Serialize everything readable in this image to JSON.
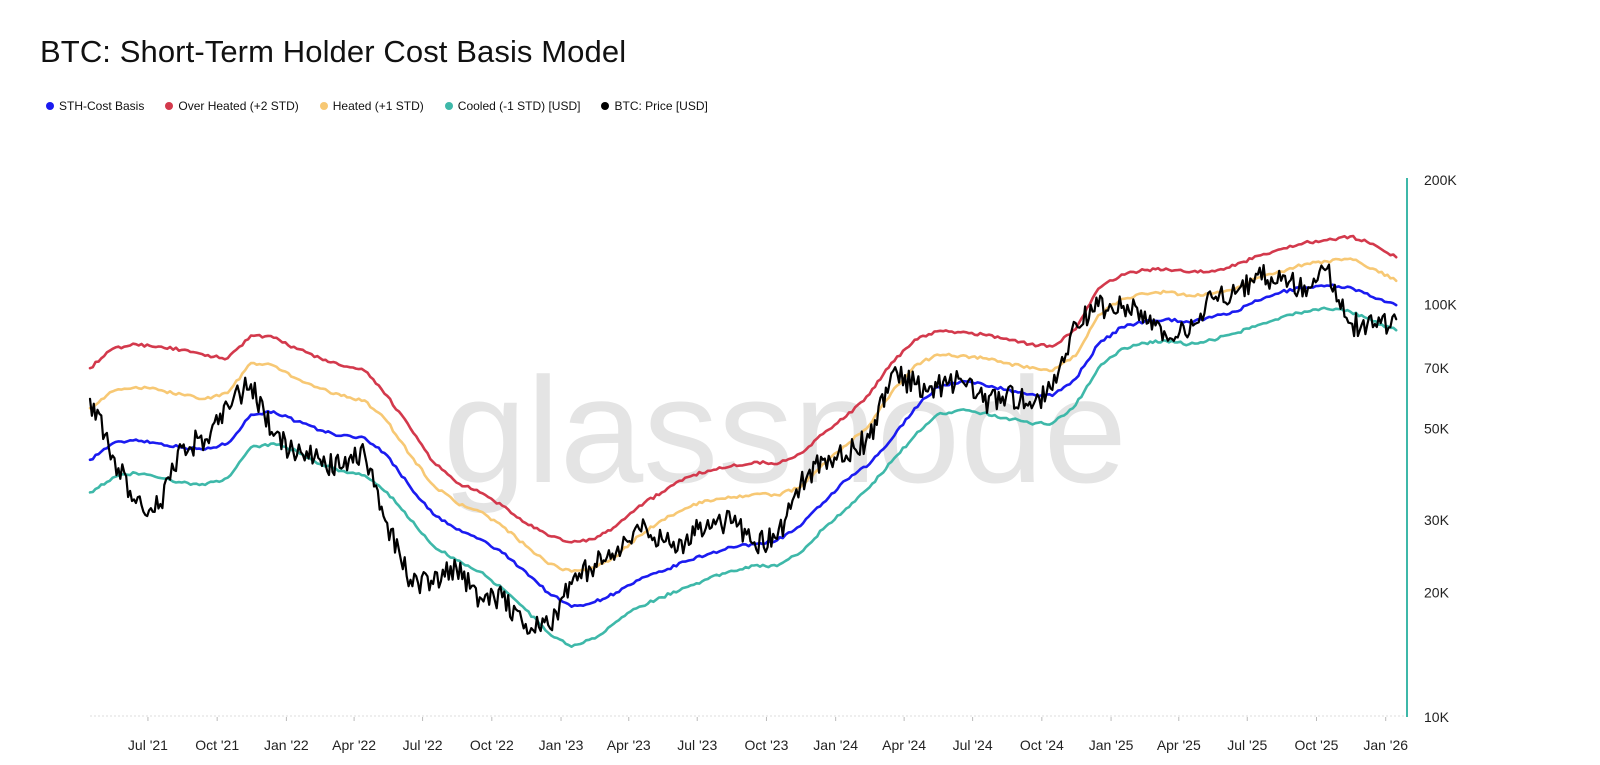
{
  "chart_data": {
    "type": "line",
    "title": "BTC: Short-Term Holder Cost Basis Model",
    "watermark": "glassnode",
    "y_scale": "log",
    "ylim": [
      10000,
      200000
    ],
    "y_ticks": [
      {
        "value": 10000,
        "label": "10K"
      },
      {
        "value": 20000,
        "label": "20K"
      },
      {
        "value": 30000,
        "label": "30K"
      },
      {
        "value": 50000,
        "label": "50K"
      },
      {
        "value": 70000,
        "label": "70K"
      },
      {
        "value": 100000,
        "label": "100K"
      },
      {
        "value": 200000,
        "label": "200K"
      }
    ],
    "xlim": [
      "2021-04-15",
      "2026-01-20"
    ],
    "x_ticks": [
      {
        "date": "2021-07-01",
        "label": "Jul '21"
      },
      {
        "date": "2021-10-01",
        "label": "Oct '21"
      },
      {
        "date": "2022-01-01",
        "label": "Jan '22"
      },
      {
        "date": "2022-04-01",
        "label": "Apr '22"
      },
      {
        "date": "2022-07-01",
        "label": "Jul '22"
      },
      {
        "date": "2022-10-01",
        "label": "Oct '22"
      },
      {
        "date": "2023-01-01",
        "label": "Jan '23"
      },
      {
        "date": "2023-04-01",
        "label": "Apr '23"
      },
      {
        "date": "2023-07-01",
        "label": "Jul '23"
      },
      {
        "date": "2023-10-01",
        "label": "Oct '23"
      },
      {
        "date": "2024-01-01",
        "label": "Jan '24"
      },
      {
        "date": "2024-04-01",
        "label": "Apr '24"
      },
      {
        "date": "2024-07-01",
        "label": "Jul '24"
      },
      {
        "date": "2024-10-01",
        "label": "Oct '24"
      },
      {
        "date": "2025-01-01",
        "label": "Jan '25"
      },
      {
        "date": "2025-04-01",
        "label": "Apr '25"
      },
      {
        "date": "2025-07-01",
        "label": "Jul '25"
      },
      {
        "date": "2025-10-01",
        "label": "Oct '25"
      },
      {
        "date": "2026-01-01",
        "label": "Jan '26"
      }
    ],
    "x": [
      "2021-04-15",
      "2021-05-15",
      "2021-06-15",
      "2021-07-15",
      "2021-08-15",
      "2021-09-15",
      "2021-10-15",
      "2021-11-15",
      "2021-12-15",
      "2022-01-15",
      "2022-02-15",
      "2022-03-15",
      "2022-04-15",
      "2022-05-15",
      "2022-06-15",
      "2022-07-15",
      "2022-08-15",
      "2022-09-15",
      "2022-10-15",
      "2022-11-15",
      "2022-12-15",
      "2023-01-15",
      "2023-02-15",
      "2023-03-15",
      "2023-04-15",
      "2023-05-15",
      "2023-06-15",
      "2023-07-15",
      "2023-08-15",
      "2023-09-15",
      "2023-10-15",
      "2023-11-15",
      "2023-12-15",
      "2024-01-15",
      "2024-02-15",
      "2024-03-15",
      "2024-04-15",
      "2024-05-15",
      "2024-06-15",
      "2024-07-15",
      "2024-08-15",
      "2024-09-15",
      "2024-10-15",
      "2024-11-15",
      "2024-12-15",
      "2025-01-15",
      "2025-02-15",
      "2025-03-15",
      "2025-04-15",
      "2025-05-15",
      "2025-06-15",
      "2025-07-15",
      "2025-08-15",
      "2025-09-15",
      "2025-10-15",
      "2025-11-15",
      "2025-12-15",
      "2026-01-15"
    ],
    "series": [
      {
        "name": "STH-Cost Basis",
        "color": "#1b1bf0",
        "values": [
          42000,
          46000,
          47000,
          46000,
          45000,
          44500,
          46000,
          54000,
          55000,
          52000,
          49500,
          48000,
          47500,
          43000,
          36000,
          31000,
          28500,
          27000,
          25000,
          22500,
          20000,
          18500,
          19000,
          20000,
          21500,
          22500,
          23800,
          24800,
          25800,
          26200,
          26800,
          29000,
          33000,
          37500,
          41000,
          47000,
          56000,
          63000,
          65000,
          64000,
          62000,
          60500,
          60000,
          66000,
          80000,
          88000,
          91000,
          92000,
          90500,
          93000,
          96000,
          102000,
          107000,
          110000,
          111000,
          110000,
          104000,
          99500
        ]
      },
      {
        "name": "Over Heated (+2 STD)",
        "color": "#d3394c",
        "values": [
          70000,
          78000,
          80000,
          79000,
          77500,
          75000,
          74000,
          84000,
          83000,
          78000,
          74000,
          71000,
          69000,
          60000,
          50000,
          41500,
          37000,
          35000,
          32500,
          29500,
          27500,
          26500,
          27000,
          29000,
          32500,
          35000,
          38000,
          39500,
          40500,
          41500,
          41000,
          43500,
          48500,
          53500,
          60500,
          72000,
          82000,
          86000,
          85500,
          84500,
          82500,
          80000,
          79000,
          87000,
          109000,
          118000,
          121000,
          122000,
          119500,
          120500,
          124000,
          131000,
          136000,
          141000,
          143000,
          146000,
          140000,
          130000
        ]
      },
      {
        "name": "Heated (+1 STD)",
        "color": "#f7c874",
        "values": [
          56000,
          61500,
          63000,
          62000,
          60500,
          59000,
          61000,
          72000,
          71000,
          66000,
          62500,
          60000,
          58500,
          52000,
          43000,
          36500,
          33000,
          31500,
          29000,
          26000,
          23500,
          22500,
          23000,
          24500,
          27500,
          30000,
          32000,
          33500,
          34000,
          34700,
          34500,
          36000,
          41000,
          45500,
          51000,
          61000,
          71000,
          75500,
          75000,
          74000,
          72000,
          70000,
          69000,
          75000,
          94000,
          103000,
          106000,
          107000,
          105000,
          106000,
          109000,
          116000,
          120000,
          125000,
          127000,
          129000,
          122000,
          114000
        ]
      },
      {
        "name": "Cooled (-1 STD) [USD]",
        "color": "#3eb8a9",
        "values": [
          35000,
          38000,
          39000,
          38000,
          37000,
          36500,
          38000,
          45000,
          46000,
          44000,
          41000,
          39500,
          38500,
          35000,
          30000,
          26000,
          24000,
          22500,
          20500,
          18200,
          16000,
          14800,
          15500,
          17000,
          18500,
          19500,
          20600,
          21600,
          22600,
          23300,
          23200,
          25000,
          28500,
          32000,
          36000,
          41500,
          48000,
          54000,
          55500,
          54500,
          53000,
          51500,
          51500,
          57000,
          70000,
          78000,
          80500,
          81500,
          80000,
          82000,
          85000,
          89000,
          93000,
          96000,
          97500,
          96000,
          91000,
          86500
        ]
      },
      {
        "name": "BTC: Price [USD]",
        "color": "#000000",
        "values": [
          59000,
          43000,
          33000,
          32000,
          45000,
          47000,
          57000,
          64000,
          48000,
          43000,
          42000,
          40000,
          43500,
          29500,
          21500,
          21000,
          23000,
          19500,
          19500,
          16800,
          16700,
          21000,
          23500,
          25000,
          28500,
          27000,
          26500,
          30000,
          29500,
          26500,
          27000,
          36500,
          42000,
          43000,
          47500,
          68000,
          64000,
          63000,
          66000,
          58000,
          60500,
          58000,
          62000,
          90000,
          99000,
          98000,
          96000,
          84000,
          85000,
          104000,
          106000,
          118000,
          114000,
          111000,
          122000,
          90000,
          88000,
          92000
        ]
      }
    ],
    "legend_position": "top-left",
    "grid": false
  }
}
